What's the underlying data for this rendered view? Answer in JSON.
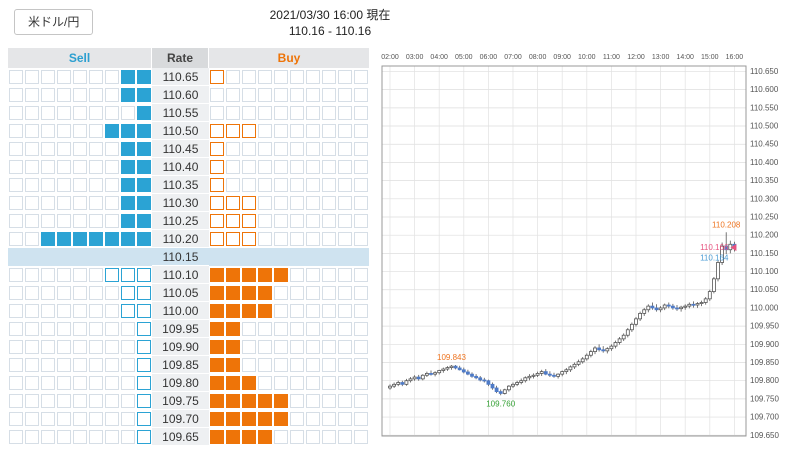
{
  "header": {
    "pair_label": "米ドル/円",
    "timestamp": "2021/03/30 16:00 現在",
    "bid_ask": "110.16 - 110.16"
  },
  "colors": {
    "sell": "#2ba3d4",
    "buy": "#ee7408",
    "current_row_bg": "#cfe3f0",
    "grid_cell_border": "#d6dee6"
  },
  "depth": {
    "columns": {
      "sell": "Sell",
      "rate": "Rate",
      "buy": "Buy"
    },
    "current_rate_row": "110.15",
    "sell_columns": 9,
    "buy_columns": 10,
    "rows": [
      {
        "rate": "110.65",
        "sell_filled": 2,
        "sell_hollow": 0,
        "buy_filled": 0,
        "buy_hollow": 1,
        "current": false
      },
      {
        "rate": "110.60",
        "sell_filled": 2,
        "sell_hollow": 0,
        "buy_filled": 0,
        "buy_hollow": 0,
        "current": false
      },
      {
        "rate": "110.55",
        "sell_filled": 1,
        "sell_hollow": 0,
        "buy_filled": 0,
        "buy_hollow": 0,
        "current": false
      },
      {
        "rate": "110.50",
        "sell_filled": 3,
        "sell_hollow": 0,
        "buy_filled": 0,
        "buy_hollow": 3,
        "current": false
      },
      {
        "rate": "110.45",
        "sell_filled": 2,
        "sell_hollow": 0,
        "buy_filled": 0,
        "buy_hollow": 1,
        "current": false
      },
      {
        "rate": "110.40",
        "sell_filled": 2,
        "sell_hollow": 0,
        "buy_filled": 0,
        "buy_hollow": 1,
        "current": false
      },
      {
        "rate": "110.35",
        "sell_filled": 2,
        "sell_hollow": 0,
        "buy_filled": 0,
        "buy_hollow": 1,
        "current": false
      },
      {
        "rate": "110.30",
        "sell_filled": 2,
        "sell_hollow": 0,
        "buy_filled": 0,
        "buy_hollow": 3,
        "current": false
      },
      {
        "rate": "110.25",
        "sell_filled": 2,
        "sell_hollow": 0,
        "buy_filled": 0,
        "buy_hollow": 3,
        "current": false
      },
      {
        "rate": "110.20",
        "sell_filled": 7,
        "sell_hollow": 0,
        "buy_filled": 0,
        "buy_hollow": 3,
        "current": false
      },
      {
        "rate": "110.15",
        "sell_filled": 0,
        "sell_hollow": 0,
        "buy_filled": 0,
        "buy_hollow": 0,
        "current": true
      },
      {
        "rate": "110.10",
        "sell_filled": 0,
        "sell_hollow": 3,
        "buy_filled": 5,
        "buy_hollow": 0,
        "current": false
      },
      {
        "rate": "110.05",
        "sell_filled": 0,
        "sell_hollow": 2,
        "buy_filled": 4,
        "buy_hollow": 0,
        "current": false
      },
      {
        "rate": "110.00",
        "sell_filled": 0,
        "sell_hollow": 2,
        "buy_filled": 4,
        "buy_hollow": 0,
        "current": false
      },
      {
        "rate": "109.95",
        "sell_filled": 0,
        "sell_hollow": 1,
        "buy_filled": 2,
        "buy_hollow": 0,
        "current": false
      },
      {
        "rate": "109.90",
        "sell_filled": 0,
        "sell_hollow": 1,
        "buy_filled": 2,
        "buy_hollow": 0,
        "current": false
      },
      {
        "rate": "109.85",
        "sell_filled": 0,
        "sell_hollow": 1,
        "buy_filled": 2,
        "buy_hollow": 0,
        "current": false
      },
      {
        "rate": "109.80",
        "sell_filled": 0,
        "sell_hollow": 1,
        "buy_filled": 3,
        "buy_hollow": 0,
        "current": false
      },
      {
        "rate": "109.75",
        "sell_filled": 0,
        "sell_hollow": 1,
        "buy_filled": 5,
        "buy_hollow": 0,
        "current": false
      },
      {
        "rate": "109.70",
        "sell_filled": 0,
        "sell_hollow": 1,
        "buy_filled": 5,
        "buy_hollow": 0,
        "current": false
      },
      {
        "rate": "109.65",
        "sell_filled": 0,
        "sell_hollow": 1,
        "buy_filled": 4,
        "buy_hollow": 0,
        "current": false
      }
    ]
  },
  "chart_data": {
    "type": "candlestick",
    "candle_interval_minutes": 10,
    "series_start": "02:00",
    "x_labels": [
      "02:00",
      "03:00",
      "04:00",
      "05:00",
      "06:00",
      "07:00",
      "08:00",
      "09:00",
      "10:00",
      "11:00",
      "12:00",
      "13:00",
      "14:00",
      "15:00",
      "16:00"
    ],
    "y_axis": {
      "min": 109.648,
      "max": 110.665,
      "ticks": [
        "110.650",
        "110.600",
        "110.550",
        "110.500",
        "110.450",
        "110.400",
        "110.350",
        "110.300",
        "110.250",
        "110.200",
        "110.150",
        "110.100",
        "110.050",
        "110.000",
        "109.950",
        "109.900",
        "109.850",
        "109.800",
        "109.750",
        "109.700",
        "109.650"
      ]
    },
    "up_color": "#ffffff",
    "down_color": "#4f7bc7",
    "wick_color": "#555555",
    "candles": [
      [
        109.78,
        109.79,
        109.775,
        109.785
      ],
      [
        109.785,
        109.795,
        109.78,
        109.79
      ],
      [
        109.79,
        109.8,
        109.785,
        109.795
      ],
      [
        109.795,
        109.8,
        109.785,
        109.79
      ],
      [
        109.79,
        109.805,
        109.786,
        109.8
      ],
      [
        109.8,
        109.81,
        109.795,
        109.805
      ],
      [
        109.805,
        109.815,
        109.8,
        109.81
      ],
      [
        109.81,
        109.816,
        109.8,
        109.805
      ],
      [
        109.805,
        109.818,
        109.801,
        109.815
      ],
      [
        109.815,
        109.825,
        109.81,
        109.82
      ],
      [
        109.82,
        109.828,
        109.814,
        109.818
      ],
      [
        109.818,
        109.826,
        109.812,
        109.822
      ],
      [
        109.822,
        109.83,
        109.817,
        109.828
      ],
      [
        109.828,
        109.836,
        109.822,
        109.832
      ],
      [
        109.832,
        109.84,
        109.827,
        109.836
      ],
      [
        109.836,
        109.843,
        109.83,
        109.84
      ],
      [
        109.84,
        109.843,
        109.831,
        109.835
      ],
      [
        109.835,
        109.841,
        109.828,
        109.83
      ],
      [
        109.83,
        109.836,
        109.82,
        109.824
      ],
      [
        109.824,
        109.83,
        109.815,
        109.818
      ],
      [
        109.818,
        109.823,
        109.808,
        109.812
      ],
      [
        109.812,
        109.818,
        109.804,
        109.808
      ],
      [
        109.808,
        109.813,
        109.798,
        109.802
      ],
      [
        109.802,
        109.808,
        109.795,
        109.8
      ],
      [
        109.8,
        109.803,
        109.785,
        109.79
      ],
      [
        109.79,
        109.795,
        109.775,
        109.78
      ],
      [
        109.78,
        109.786,
        109.766,
        109.77
      ],
      [
        109.77,
        109.776,
        109.76,
        109.765
      ],
      [
        109.765,
        109.778,
        109.762,
        109.775
      ],
      [
        109.775,
        109.788,
        109.77,
        109.785
      ],
      [
        109.785,
        109.795,
        109.78,
        109.79
      ],
      [
        109.79,
        109.8,
        109.785,
        109.795
      ],
      [
        109.795,
        109.806,
        109.79,
        109.8
      ],
      [
        109.8,
        109.812,
        109.795,
        109.808
      ],
      [
        109.808,
        109.818,
        109.801,
        109.812
      ],
      [
        109.812,
        109.82,
        109.806,
        109.815
      ],
      [
        109.815,
        109.825,
        109.81,
        109.82
      ],
      [
        109.82,
        109.83,
        109.813,
        109.825
      ],
      [
        109.825,
        109.832,
        109.815,
        109.818
      ],
      [
        109.818,
        109.826,
        109.81,
        109.815
      ],
      [
        109.815,
        109.822,
        109.808,
        109.812
      ],
      [
        109.812,
        109.82,
        109.806,
        109.818
      ],
      [
        109.818,
        109.828,
        109.812,
        109.825
      ],
      [
        109.825,
        109.835,
        109.818,
        109.83
      ],
      [
        109.83,
        109.842,
        109.824,
        109.838
      ],
      [
        109.838,
        109.85,
        109.832,
        109.845
      ],
      [
        109.845,
        109.858,
        109.84,
        109.852
      ],
      [
        109.852,
        109.865,
        109.847,
        109.86
      ],
      [
        109.86,
        109.875,
        109.855,
        109.87
      ],
      [
        109.87,
        109.885,
        109.864,
        109.88
      ],
      [
        109.88,
        109.895,
        109.873,
        109.89
      ],
      [
        109.89,
        109.9,
        109.88,
        109.885
      ],
      [
        109.885,
        109.895,
        109.877,
        109.882
      ],
      [
        109.882,
        109.892,
        109.875,
        109.888
      ],
      [
        109.888,
        109.9,
        109.882,
        109.895
      ],
      [
        109.895,
        109.91,
        109.889,
        109.905
      ],
      [
        109.905,
        109.92,
        109.899,
        109.915
      ],
      [
        109.915,
        109.93,
        109.909,
        109.925
      ],
      [
        109.925,
        109.945,
        109.919,
        109.94
      ],
      [
        109.94,
        109.96,
        109.934,
        109.955
      ],
      [
        109.955,
        109.975,
        109.949,
        109.97
      ],
      [
        109.97,
        109.99,
        109.964,
        109.985
      ],
      [
        109.985,
        110.0,
        109.978,
        109.995
      ],
      [
        109.995,
        110.01,
        109.988,
        110.005
      ],
      [
        110.005,
        110.015,
        109.995,
        110.0
      ],
      [
        110.0,
        110.01,
        109.99,
        109.995
      ],
      [
        109.995,
        110.005,
        109.988,
        110.0
      ],
      [
        110.0,
        110.012,
        109.994,
        110.008
      ],
      [
        110.008,
        110.015,
        109.999,
        110.005
      ],
      [
        110.005,
        110.011,
        109.995,
        110.0
      ],
      [
        110.0,
        110.008,
        109.992,
        109.998
      ],
      [
        109.998,
        110.006,
        109.99,
        110.002
      ],
      [
        110.002,
        110.01,
        109.995,
        110.005
      ],
      [
        110.005,
        110.015,
        109.999,
        110.01
      ],
      [
        110.01,
        110.018,
        110.001,
        110.008
      ],
      [
        110.008,
        110.016,
        110.0,
        110.012
      ],
      [
        110.012,
        110.02,
        110.005,
        110.015
      ],
      [
        110.015,
        110.03,
        110.009,
        110.025
      ],
      [
        110.025,
        110.05,
        110.019,
        110.045
      ],
      [
        110.045,
        110.085,
        110.04,
        110.08
      ],
      [
        110.08,
        110.13,
        110.073,
        110.125
      ],
      [
        110.125,
        110.18,
        110.118,
        110.17
      ],
      [
        110.17,
        110.208,
        110.148,
        110.16
      ],
      [
        110.16,
        110.185,
        110.15,
        110.175
      ],
      [
        110.175,
        110.182,
        110.155,
        110.164
      ]
    ],
    "annotations": [
      {
        "id": "session-high",
        "text": "110.208",
        "price": 110.208,
        "candle_index": 82,
        "placement": "above",
        "color": "#ee7420"
      },
      {
        "id": "morning-high",
        "text": "109.843",
        "price": 109.843,
        "candle_index": 15,
        "placement": "above",
        "color": "#ee7420"
      },
      {
        "id": "session-low",
        "text": "109.760",
        "price": 109.76,
        "candle_index": 27,
        "placement": "below",
        "color": "#33a033"
      },
      {
        "id": "current-ask",
        "text": "110.166",
        "price": 110.166,
        "placement": "right-marker",
        "color": "#e75480"
      },
      {
        "id": "current-bid",
        "text": "110.164",
        "price": 110.164,
        "placement": "right-below",
        "color": "#4a9bd4"
      }
    ]
  }
}
